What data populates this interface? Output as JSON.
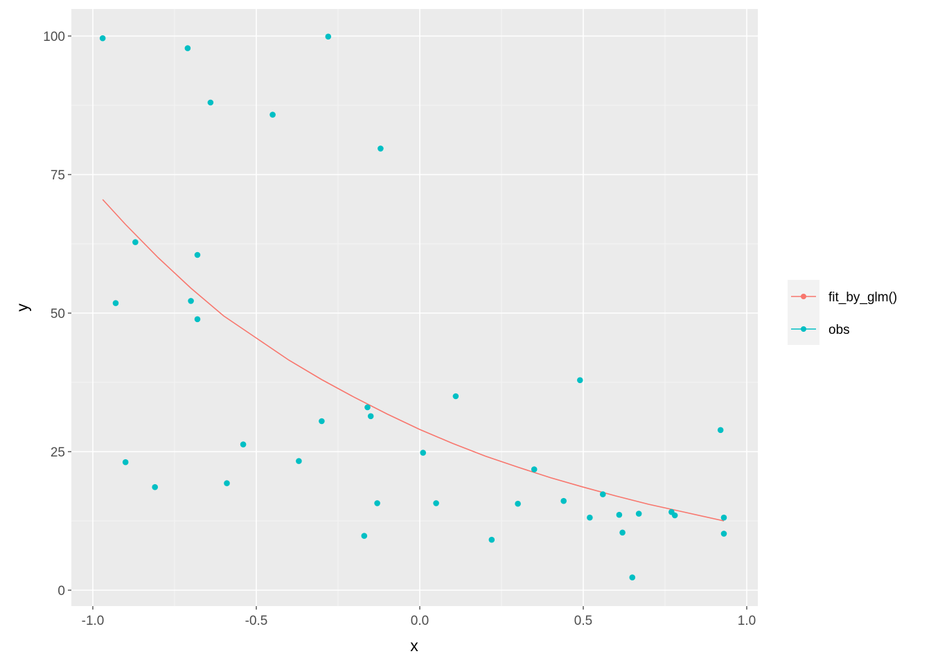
{
  "chart_data": {
    "type": "scatter",
    "xlabel": "x",
    "ylabel": "y",
    "xlim": [
      -1.0,
      1.0
    ],
    "ylim": [
      0,
      100
    ],
    "x_ticks": [
      "-1.0",
      "-0.5",
      "0.0",
      "0.5",
      "1.0"
    ],
    "y_ticks": [
      "0",
      "25",
      "50",
      "75",
      "100"
    ],
    "grid": true,
    "legend_position": "right",
    "series": [
      {
        "name": "fit_by_glm()",
        "kind": "line",
        "color": "#F8766D",
        "points": [
          [
            -0.97,
            70.5
          ],
          [
            -0.9,
            66.0
          ],
          [
            -0.8,
            60.0
          ],
          [
            -0.7,
            54.5
          ],
          [
            -0.6,
            49.5
          ],
          [
            -0.5,
            45.5
          ],
          [
            -0.4,
            41.5
          ],
          [
            -0.3,
            38.0
          ],
          [
            -0.2,
            34.8
          ],
          [
            -0.1,
            31.8
          ],
          [
            0.0,
            29.0
          ],
          [
            0.1,
            26.5
          ],
          [
            0.2,
            24.2
          ],
          [
            0.3,
            22.2
          ],
          [
            0.4,
            20.3
          ],
          [
            0.5,
            18.6
          ],
          [
            0.6,
            17.0
          ],
          [
            0.7,
            15.5
          ],
          [
            0.8,
            14.2
          ],
          [
            0.93,
            12.5
          ]
        ]
      },
      {
        "name": "obs",
        "kind": "points",
        "color": "#00BFC4",
        "points": [
          [
            -0.97,
            99.6
          ],
          [
            -0.71,
            97.8
          ],
          [
            -0.28,
            99.9
          ],
          [
            -0.64,
            88.0
          ],
          [
            -0.45,
            85.8
          ],
          [
            -0.12,
            79.7
          ],
          [
            -0.87,
            62.8
          ],
          [
            -0.68,
            60.5
          ],
          [
            -0.93,
            51.8
          ],
          [
            -0.7,
            52.2
          ],
          [
            -0.68,
            48.9
          ],
          [
            0.49,
            37.9
          ],
          [
            0.11,
            35.0
          ],
          [
            -0.16,
            33.0
          ],
          [
            -0.15,
            31.4
          ],
          [
            -0.3,
            30.5
          ],
          [
            0.92,
            28.9
          ],
          [
            -0.54,
            26.3
          ],
          [
            0.01,
            24.8
          ],
          [
            -0.9,
            23.1
          ],
          [
            -0.37,
            23.3
          ],
          [
            0.35,
            21.8
          ],
          [
            -0.59,
            19.3
          ],
          [
            -0.81,
            18.6
          ],
          [
            0.56,
            17.3
          ],
          [
            0.44,
            16.1
          ],
          [
            -0.13,
            15.7
          ],
          [
            0.05,
            15.7
          ],
          [
            0.3,
            15.6
          ],
          [
            0.77,
            14.1
          ],
          [
            0.78,
            13.5
          ],
          [
            0.61,
            13.6
          ],
          [
            0.67,
            13.8
          ],
          [
            0.52,
            13.1
          ],
          [
            0.93,
            13.1
          ],
          [
            0.62,
            10.4
          ],
          [
            0.93,
            10.2
          ],
          [
            -0.17,
            9.8
          ],
          [
            0.22,
            9.1
          ],
          [
            0.65,
            2.3
          ]
        ]
      }
    ]
  }
}
